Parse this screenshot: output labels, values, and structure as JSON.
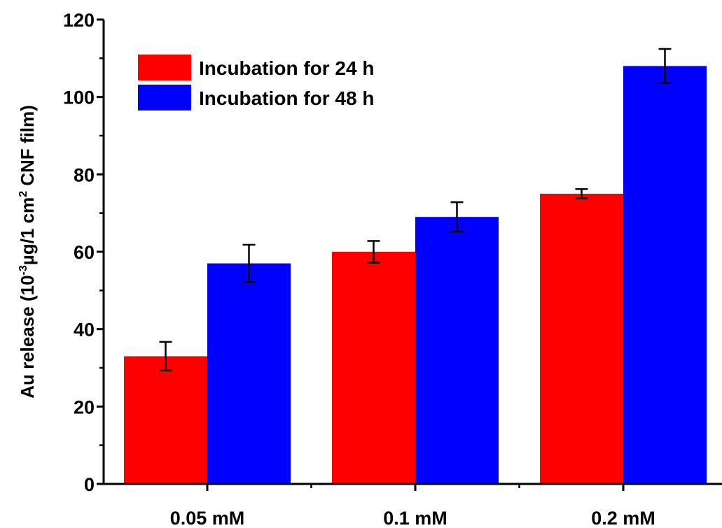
{
  "chart_data": {
    "type": "bar",
    "categories": [
      "0.05 mM",
      "0.1 mM",
      "0.2 mM"
    ],
    "series": [
      {
        "name": "Incubation for 24 h",
        "color": "#ff0000",
        "values": [
          33,
          60,
          75
        ],
        "errors": [
          3.7,
          2.8,
          1.2
        ]
      },
      {
        "name": "Incubation for 48 h",
        "color": "#0000ff",
        "values": [
          57,
          69,
          108
        ],
        "errors": [
          4.8,
          3.8,
          4.4
        ]
      }
    ],
    "ylabel": {
      "prefix": "Au release (10",
      "sup1": "-3",
      "middle": "µg/1 cm",
      "sup2": "2",
      "suffix": " CNF film)"
    },
    "ylim": [
      0,
      120
    ],
    "yticks": [
      "0",
      "20",
      "40",
      "60",
      "80",
      "100",
      "120"
    ],
    "legend_position": "top-left",
    "grid": false
  }
}
